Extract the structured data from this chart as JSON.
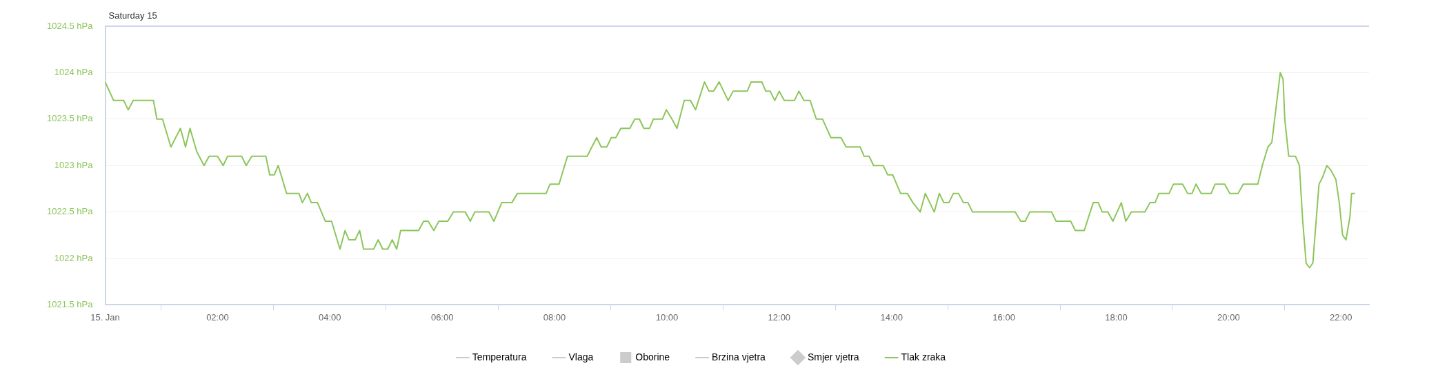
{
  "chart_data": {
    "type": "line",
    "legend": "bottom",
    "grid": "y",
    "marker": "none",
    "line_style": "solid",
    "xlim": [
      0,
      22.5
    ],
    "xticks": [
      {
        "value": 0,
        "label": "15. Jan"
      },
      {
        "value": 2,
        "label": "02:00"
      },
      {
        "value": 4,
        "label": "04:00"
      },
      {
        "value": 6,
        "label": "06:00"
      },
      {
        "value": 8,
        "label": "08:00"
      },
      {
        "value": 10,
        "label": "10:00"
      },
      {
        "value": 12,
        "label": "12:00"
      },
      {
        "value": 14,
        "label": "14:00"
      },
      {
        "value": 16,
        "label": "16:00"
      },
      {
        "value": 18,
        "label": "18:00"
      },
      {
        "value": 20,
        "label": "20:00"
      },
      {
        "value": 22,
        "label": "22:00"
      }
    ],
    "ylim": [
      1021.5,
      1024.5
    ],
    "yticks": [
      {
        "value": 1021.5,
        "label": "1021.5 hPa"
      },
      {
        "value": 1022,
        "label": "1022 hPa"
      },
      {
        "value": 1022.5,
        "label": "1022.5 hPa"
      },
      {
        "value": 1023,
        "label": "1023 hPa"
      },
      {
        "value": 1023.5,
        "label": "1023.5 hPa"
      },
      {
        "value": 1024,
        "label": "1024 hPa"
      },
      {
        "value": 1024.5,
        "label": "1024.5 hPa"
      }
    ],
    "annotations": [
      "Saturday 15"
    ],
    "series": [
      {
        "name": "Temperatura",
        "type": "line",
        "color": "#cccccc"
      },
      {
        "name": "Vlaga",
        "type": "line",
        "color": "#cccccc"
      },
      {
        "name": "Oborine",
        "type": "bar",
        "color": "#cccccc"
      },
      {
        "name": "Brzina vjetra",
        "type": "line",
        "color": "#cccccc"
      },
      {
        "name": "Smjer vjetra",
        "type": "scatter",
        "marker": "diamond",
        "color": "#cccccc"
      },
      {
        "name": "Tlak zraka",
        "color": "#8cc65a",
        "x": [
          0,
          0.15,
          0.33,
          0.41,
          0.5,
          0.86,
          0.92,
          1.02,
          1.17,
          1.34,
          1.43,
          1.51,
          1.63,
          1.76,
          1.85,
          2.0,
          2.1,
          2.18,
          2.43,
          2.51,
          2.61,
          2.86,
          2.93,
          3.01,
          3.08,
          3.23,
          3.45,
          3.51,
          3.6,
          3.67,
          3.78,
          3.92,
          4.03,
          4.18,
          4.27,
          4.34,
          4.45,
          4.53,
          4.6,
          4.78,
          4.86,
          4.94,
          5.03,
          5.11,
          5.19,
          5.26,
          5.58,
          5.67,
          5.75,
          5.85,
          5.94,
          6.1,
          6.2,
          6.41,
          6.5,
          6.58,
          6.83,
          6.92,
          7.06,
          7.24,
          7.34,
          7.85,
          7.92,
          8.08,
          8.23,
          8.58,
          8.75,
          8.83,
          8.93,
          9.01,
          9.09,
          9.18,
          9.34,
          9.43,
          9.51,
          9.59,
          9.69,
          9.76,
          9.92,
          9.99,
          10.09,
          10.18,
          10.31,
          10.42,
          10.51,
          10.67,
          10.75,
          10.83,
          10.93,
          11.09,
          11.18,
          11.43,
          11.5,
          11.69,
          11.76,
          11.84,
          11.92,
          12.0,
          12.09,
          12.27,
          12.35,
          12.44,
          12.55,
          12.66,
          12.77,
          12.92,
          13.1,
          13.19,
          13.44,
          13.51,
          13.6,
          13.68,
          13.85,
          13.93,
          14.02,
          14.16,
          14.28,
          14.38,
          14.51,
          14.6,
          14.76,
          14.85,
          14.93,
          15.02,
          15.1,
          15.19,
          15.28,
          15.36,
          15.44,
          16.2,
          16.3,
          16.38,
          16.46,
          16.85,
          16.93,
          17.19,
          17.27,
          17.43,
          17.59,
          17.68,
          17.75,
          17.85,
          17.94,
          18.09,
          18.17,
          18.27,
          18.51,
          18.6,
          18.69,
          18.76,
          18.94,
          19.02,
          19.18,
          19.27,
          19.35,
          19.42,
          19.51,
          19.69,
          19.76,
          19.93,
          20.02,
          20.17,
          20.26,
          20.52,
          20.6,
          20.7,
          20.77,
          20.86,
          20.92,
          20.97,
          21.0,
          21.07,
          21.19,
          21.26,
          21.32,
          21.38,
          21.44,
          21.5,
          21.57,
          21.61,
          21.67,
          21.75,
          21.82,
          21.91,
          21.97,
          22.03,
          22.09,
          22.16,
          22.19,
          22.25
        ],
        "values": [
          1023.9,
          1023.7,
          1023.7,
          1023.6,
          1023.7,
          1023.7,
          1023.5,
          1023.5,
          1023.2,
          1023.4,
          1023.2,
          1023.4,
          1023.15,
          1023.0,
          1023.1,
          1023.1,
          1023.0,
          1023.1,
          1023.1,
          1023.0,
          1023.1,
          1023.1,
          1022.9,
          1022.9,
          1023.0,
          1022.7,
          1022.7,
          1022.6,
          1022.7,
          1022.6,
          1022.6,
          1022.4,
          1022.4,
          1022.1,
          1022.3,
          1022.2,
          1022.2,
          1022.3,
          1022.1,
          1022.1,
          1022.2,
          1022.1,
          1022.1,
          1022.2,
          1022.1,
          1022.3,
          1022.3,
          1022.4,
          1022.4,
          1022.3,
          1022.4,
          1022.4,
          1022.5,
          1022.5,
          1022.4,
          1022.5,
          1022.5,
          1022.4,
          1022.6,
          1022.6,
          1022.7,
          1022.7,
          1022.8,
          1022.8,
          1023.1,
          1023.1,
          1023.3,
          1023.2,
          1023.2,
          1023.3,
          1023.3,
          1023.4,
          1023.4,
          1023.5,
          1023.5,
          1023.4,
          1023.4,
          1023.5,
          1023.5,
          1023.6,
          1023.5,
          1023.4,
          1023.7,
          1023.7,
          1023.6,
          1023.9,
          1023.8,
          1023.8,
          1023.9,
          1023.7,
          1023.8,
          1023.8,
          1023.9,
          1023.9,
          1023.8,
          1023.8,
          1023.7,
          1023.8,
          1023.7,
          1023.7,
          1023.8,
          1023.7,
          1023.7,
          1023.5,
          1023.5,
          1023.3,
          1023.3,
          1023.2,
          1023.2,
          1023.1,
          1023.1,
          1023.0,
          1023.0,
          1022.9,
          1022.9,
          1022.7,
          1022.7,
          1022.6,
          1022.5,
          1022.7,
          1022.5,
          1022.7,
          1022.6,
          1022.6,
          1022.7,
          1022.7,
          1022.6,
          1022.6,
          1022.5,
          1022.5,
          1022.4,
          1022.4,
          1022.5,
          1022.5,
          1022.4,
          1022.4,
          1022.3,
          1022.3,
          1022.6,
          1022.6,
          1022.5,
          1022.5,
          1022.4,
          1022.6,
          1022.4,
          1022.5,
          1022.5,
          1022.6,
          1022.6,
          1022.7,
          1022.7,
          1022.8,
          1022.8,
          1022.7,
          1022.7,
          1022.8,
          1022.7,
          1022.7,
          1022.8,
          1022.8,
          1022.7,
          1022.7,
          1022.8,
          1022.8,
          1023.0,
          1023.2,
          1023.25,
          1023.7,
          1024.0,
          1023.93,
          1023.5,
          1023.1,
          1023.1,
          1023.0,
          1022.4,
          1021.95,
          1021.9,
          1021.95,
          1022.5,
          1022.8,
          1022.87,
          1023.0,
          1022.95,
          1022.85,
          1022.6,
          1022.25,
          1022.2,
          1022.45,
          1022.7,
          1022.7
        ]
      }
    ]
  }
}
